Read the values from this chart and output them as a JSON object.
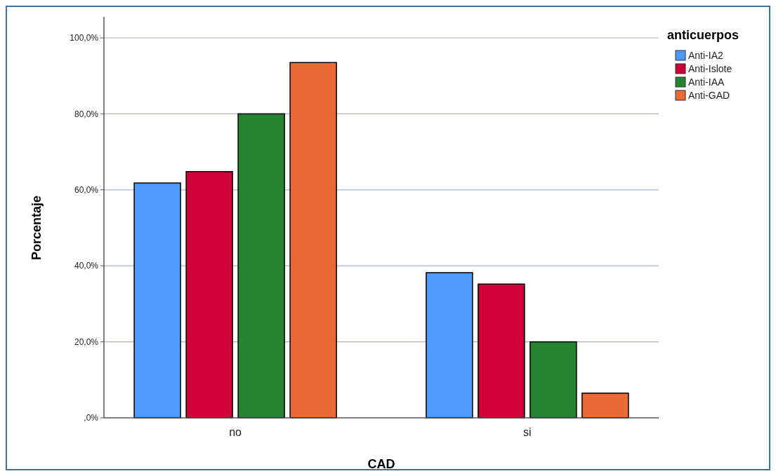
{
  "chart_data": {
    "type": "bar",
    "xlabel": "CAD",
    "ylabel": "Porcentaje",
    "legend_title": "anticuerpos",
    "categories": [
      "no",
      "si"
    ],
    "series": [
      {
        "name": "Anti-IA2",
        "color": "#4f99fc",
        "values": [
          61.8,
          38.2
        ]
      },
      {
        "name": "Anti-Islote",
        "color": "#cf0037",
        "values": [
          64.8,
          35.2
        ]
      },
      {
        "name": "Anti-IAA",
        "color": "#268330",
        "values": [
          80,
          20
        ]
      },
      {
        "name": "Anti-GAD",
        "color": "#ea6934",
        "values": [
          93.5,
          6.5
        ]
      }
    ],
    "ylim": [
      0,
      100
    ],
    "yticks": [
      {
        "value": 0,
        "label": ",0%"
      },
      {
        "value": 20,
        "label": "20,0%"
      },
      {
        "value": 40,
        "label": "40,0%"
      },
      {
        "value": 60,
        "label": "60,0%"
      },
      {
        "value": 80,
        "label": "80,0%"
      },
      {
        "value": 100,
        "label": "100,0%"
      }
    ],
    "grid": "y",
    "legend": "top right"
  }
}
